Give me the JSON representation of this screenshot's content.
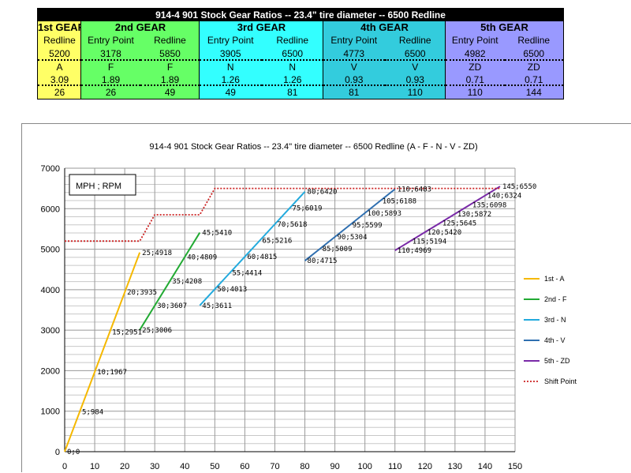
{
  "table": {
    "title": "914-4 901 Stock Gear Ratios -- 23.4\" tire diameter -- 6500 Redline",
    "gears": [
      {
        "header": "1st GEAR",
        "col_labels": [
          "Redline"
        ],
        "rpm": [
          "5200"
        ],
        "code": [
          "A"
        ],
        "ratio": [
          "3.09"
        ],
        "mph": [
          "26"
        ]
      },
      {
        "header": "2nd GEAR",
        "col_labels": [
          "Entry Point",
          "Redline"
        ],
        "rpm": [
          "3178",
          "5850"
        ],
        "code": [
          "F",
          "F"
        ],
        "ratio": [
          "1.89",
          "1.89"
        ],
        "mph": [
          "26",
          "49"
        ]
      },
      {
        "header": "3rd GEAR",
        "col_labels": [
          "Entry Point",
          "Redline"
        ],
        "rpm": [
          "3905",
          "6500"
        ],
        "code": [
          "N",
          "N"
        ],
        "ratio": [
          "1.26",
          "1.26"
        ],
        "mph": [
          "49",
          "81"
        ]
      },
      {
        "header": "4th GEAR",
        "col_labels": [
          "Entry Point",
          "Redline"
        ],
        "rpm": [
          "4773",
          "6500"
        ],
        "code": [
          "V",
          "V"
        ],
        "ratio": [
          "0.93",
          "0.93"
        ],
        "mph": [
          "81",
          "110"
        ]
      },
      {
        "header": "5th GEAR",
        "col_labels": [
          "Entry Point",
          "Redline"
        ],
        "rpm": [
          "4982",
          "6500"
        ],
        "code": [
          "ZD",
          "ZD"
        ],
        "ratio": [
          "0.71",
          "0.71"
        ],
        "mph": [
          "110",
          "144"
        ]
      }
    ]
  },
  "chart_data": {
    "type": "line",
    "title": "914-4 901 Stock Gear Ratios -- 23.4'' tire diameter -- 6500 Redline   (A - F - N - V - ZD)",
    "annotation_box": "MPH ; RPM",
    "xlim": [
      0,
      150
    ],
    "ylim": [
      0,
      7000
    ],
    "x_ticks": [
      0,
      10,
      20,
      30,
      40,
      50,
      60,
      70,
      80,
      90,
      100,
      110,
      120,
      130,
      140,
      150
    ],
    "y_ticks": [
      0,
      1000,
      2000,
      3000,
      4000,
      5000,
      6000,
      7000
    ],
    "grid": true,
    "legend_position": "right",
    "series": [
      {
        "name": "1st - A",
        "color": "#f5b800",
        "points": [
          [
            0,
            0
          ],
          [
            5,
            984
          ],
          [
            10,
            1967
          ],
          [
            15,
            2951
          ],
          [
            20,
            3935
          ],
          [
            25,
            4918
          ]
        ]
      },
      {
        "name": "2nd - F",
        "color": "#22aa33",
        "points": [
          [
            25,
            3006
          ],
          [
            30,
            3607
          ],
          [
            35,
            4208
          ],
          [
            40,
            4809
          ],
          [
            45,
            5410
          ]
        ]
      },
      {
        "name": "3rd - N",
        "color": "#22aadd",
        "points": [
          [
            45,
            3611
          ],
          [
            50,
            4013
          ],
          [
            55,
            4414
          ],
          [
            60,
            4815
          ],
          [
            65,
            5216
          ],
          [
            70,
            5618
          ],
          [
            75,
            6019
          ],
          [
            80,
            6420
          ]
        ]
      },
      {
        "name": "4th - V",
        "color": "#2f6fb0",
        "points": [
          [
            80,
            4715
          ],
          [
            85,
            5009
          ],
          [
            90,
            5304
          ],
          [
            95,
            5599
          ],
          [
            100,
            5893
          ],
          [
            105,
            6188
          ],
          [
            110,
            6483
          ]
        ]
      },
      {
        "name": "5th - ZD",
        "color": "#7a2aa8",
        "points": [
          [
            110,
            4969
          ],
          [
            115,
            5194
          ],
          [
            120,
            5420
          ],
          [
            125,
            5645
          ],
          [
            130,
            5872
          ],
          [
            135,
            6098
          ],
          [
            140,
            6324
          ],
          [
            145,
            6550
          ]
        ]
      },
      {
        "name": "Shift Point",
        "color": "#cc2222",
        "dashed": true,
        "points": [
          [
            0,
            5200
          ],
          [
            25,
            5200
          ],
          [
            30,
            5850
          ],
          [
            45,
            5850
          ],
          [
            50,
            6500
          ],
          [
            145,
            6500
          ]
        ]
      }
    ],
    "point_labels": [
      {
        "text": "0;0",
        "x": 0,
        "y": 0
      },
      {
        "text": "5;984",
        "x": 5,
        "y": 984
      },
      {
        "text": "10;1967",
        "x": 10,
        "y": 1967
      },
      {
        "text": "15;2951",
        "x": 15,
        "y": 2951
      },
      {
        "text": "20;3935",
        "x": 20,
        "y": 3935
      },
      {
        "text": "25;4918",
        "x": 25,
        "y": 4918
      },
      {
        "text": "25;3006",
        "x": 25,
        "y": 3006
      },
      {
        "text": "30;3607",
        "x": 30,
        "y": 3607
      },
      {
        "text": "35;4208",
        "x": 35,
        "y": 4208
      },
      {
        "text": "40;4809",
        "x": 40,
        "y": 4809
      },
      {
        "text": "45;5410",
        "x": 45,
        "y": 5410
      },
      {
        "text": "45;3611",
        "x": 45,
        "y": 3611
      },
      {
        "text": "50;4013",
        "x": 50,
        "y": 4013
      },
      {
        "text": "55;4414",
        "x": 55,
        "y": 4414
      },
      {
        "text": "60;4815",
        "x": 60,
        "y": 4815
      },
      {
        "text": "65;5216",
        "x": 65,
        "y": 5216
      },
      {
        "text": "70;5618",
        "x": 70,
        "y": 5618
      },
      {
        "text": "75;6019",
        "x": 75,
        "y": 6019
      },
      {
        "text": "80;6420",
        "x": 80,
        "y": 6420
      },
      {
        "text": "80;4715",
        "x": 80,
        "y": 4715
      },
      {
        "text": "85;5009",
        "x": 85,
        "y": 5009
      },
      {
        "text": "90;5304",
        "x": 90,
        "y": 5304
      },
      {
        "text": "95;5599",
        "x": 95,
        "y": 5599
      },
      {
        "text": "100;5893",
        "x": 100,
        "y": 5893
      },
      {
        "text": "105;6188",
        "x": 105,
        "y": 6188
      },
      {
        "text": "110;6483",
        "x": 110,
        "y": 6483
      },
      {
        "text": "110;4969",
        "x": 110,
        "y": 4969
      },
      {
        "text": "115;5194",
        "x": 115,
        "y": 5194
      },
      {
        "text": "120;5420",
        "x": 120,
        "y": 5420
      },
      {
        "text": "125;5645",
        "x": 125,
        "y": 5645
      },
      {
        "text": "130;5872",
        "x": 130,
        "y": 5872
      },
      {
        "text": "135;6098",
        "x": 135,
        "y": 6098
      },
      {
        "text": "140;6324",
        "x": 140,
        "y": 6324
      },
      {
        "text": "145;6550",
        "x": 145,
        "y": 6550
      }
    ]
  }
}
